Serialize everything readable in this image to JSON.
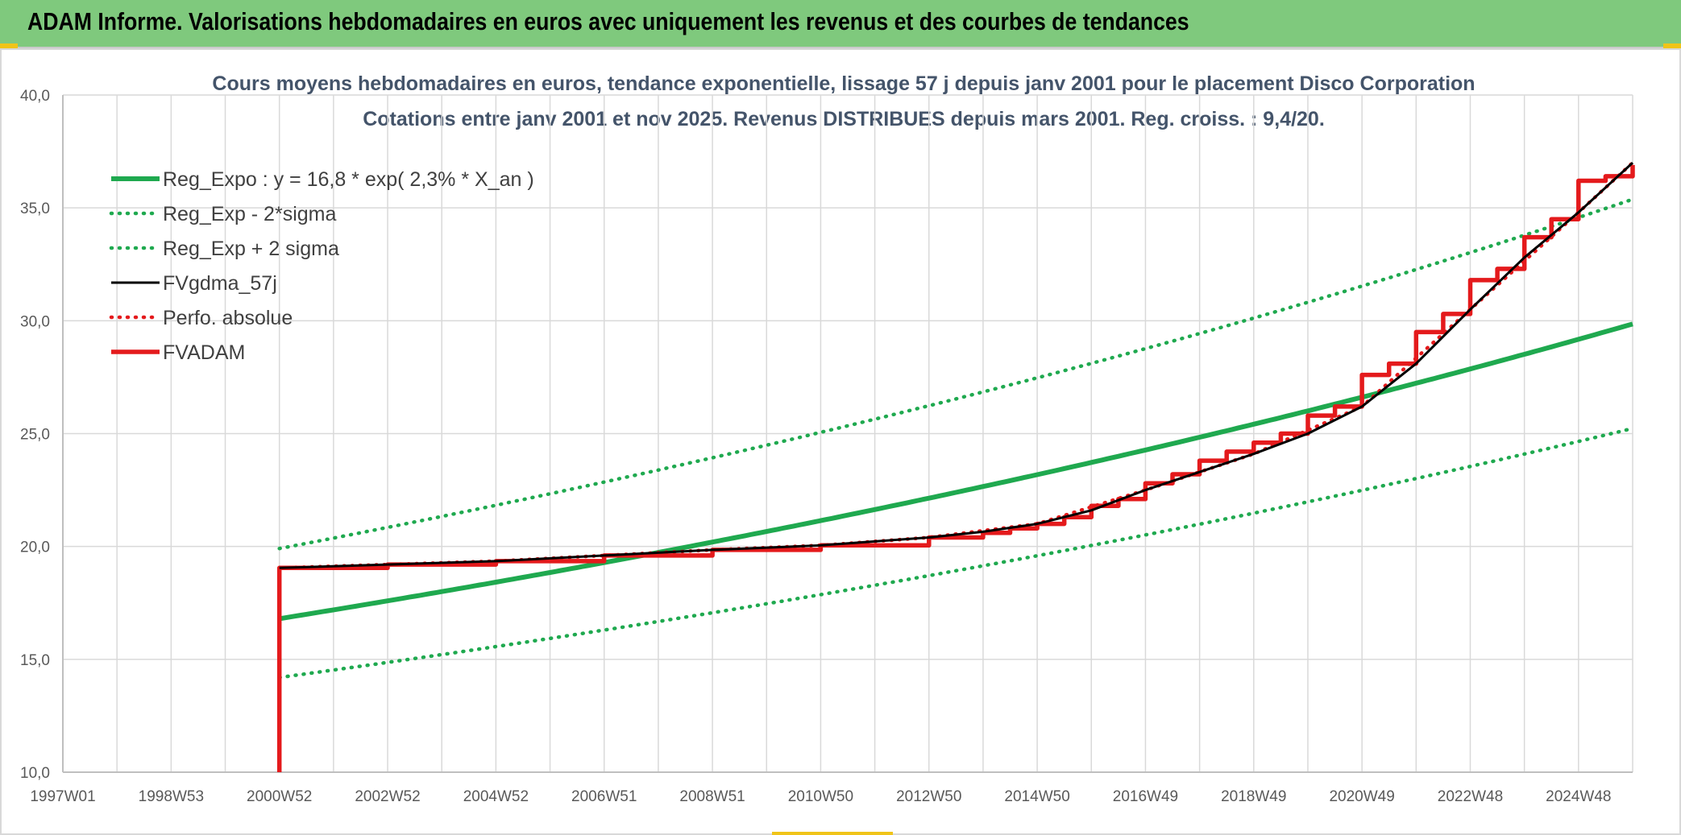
{
  "page": {
    "banner_title": "ADAM Informe. Valorisations hebdomadaires en euros avec uniquement les revenus et des courbes de tendances"
  },
  "chart_data": {
    "type": "line",
    "title": "Cours moyens hebdomadaires en euros, tendance exponentielle, lissage 57 j depuis janv 2001 pour le placement Disco Corporation",
    "subtitle": "Cotations entre janv 2001 et nov 2025. Revenus DISTRIBUES depuis mars 2001. Reg. croiss. : 9,4/20.",
    "xlabel": "",
    "ylabel": "",
    "x_tick_labels": [
      "1997W01",
      "1998W53",
      "2000W52",
      "2002W52",
      "2004W52",
      "2006W51",
      "2008W51",
      "2010W50",
      "2012W50",
      "2014W50",
      "2016W49",
      "2018W49",
      "2020W49",
      "2022W48",
      "2024W48"
    ],
    "x_ticks_years": [
      1997.0,
      1999.0,
      2001.0,
      2003.0,
      2005.0,
      2007.0,
      2009.0,
      2011.0,
      2013.0,
      2015.0,
      2017.0,
      2019.0,
      2021.0,
      2023.0,
      2025.0
    ],
    "xlim": [
      1997.0,
      2026.0
    ],
    "y_tick_labels": [
      "10,0",
      "15,0",
      "20,0",
      "25,0",
      "30,0",
      "35,0",
      "40,0"
    ],
    "y_ticks": [
      10,
      15,
      20,
      25,
      30,
      35,
      40
    ],
    "ylim": [
      10,
      40
    ],
    "grid": true,
    "legend_position": "top-left",
    "regression": {
      "a": 16.8,
      "rate": 0.023,
      "start_year": 2001.0,
      "end_year": 2026.0,
      "band_factor_low": 0.845,
      "band_factor_high": 1.185
    },
    "series": [
      {
        "name": "Reg_Expo : y = 16,8 * exp( 2,3% *  X_an )",
        "style": "solid-thick",
        "color": "#1fa94f",
        "x": [
          2001.0,
          2003.0,
          2005.0,
          2007.0,
          2009.0,
          2011.0,
          2013.0,
          2015.0,
          2017.0,
          2019.0,
          2021.0,
          2023.0,
          2025.0,
          2026.0
        ],
        "y": [
          16.8,
          17.6,
          18.4,
          19.3,
          20.2,
          21.2,
          22.2,
          23.2,
          24.3,
          25.5,
          26.7,
          28.0,
          29.3,
          30.1
        ]
      },
      {
        "name": "Reg_Exp - 2*sigma",
        "style": "dotted",
        "color": "#1fa94f",
        "x": [
          2001.0,
          2003.0,
          2005.0,
          2007.0,
          2009.0,
          2011.0,
          2013.0,
          2015.0,
          2017.0,
          2019.0,
          2021.0,
          2023.0,
          2025.0,
          2026.0
        ],
        "y": [
          14.2,
          14.9,
          15.6,
          16.3,
          17.1,
          17.9,
          18.7,
          19.6,
          20.5,
          21.5,
          22.6,
          23.6,
          24.8,
          25.4
        ]
      },
      {
        "name": "Reg_Exp + 2 sigma",
        "style": "dotted",
        "color": "#1fa94f",
        "x": [
          2001.0,
          2003.0,
          2005.0,
          2007.0,
          2009.0,
          2011.0,
          2013.0,
          2015.0,
          2017.0,
          2019.0,
          2021.0,
          2023.0,
          2025.0,
          2026.0
        ],
        "y": [
          19.9,
          20.8,
          21.8,
          22.8,
          23.9,
          25.1,
          26.3,
          27.5,
          28.8,
          30.2,
          31.6,
          33.2,
          34.7,
          35.7
        ]
      },
      {
        "name": "FVgdma_57j",
        "style": "solid",
        "color": "#000000",
        "x": [
          2001.0,
          2003.0,
          2005.0,
          2007.0,
          2009.0,
          2011.0,
          2013.0,
          2014.0,
          2015.0,
          2016.0,
          2017.0,
          2018.0,
          2019.0,
          2020.0,
          2021.0,
          2022.0,
          2023.0,
          2024.0,
          2025.0,
          2026.0
        ],
        "y": [
          19.05,
          19.2,
          19.35,
          19.6,
          19.85,
          20.05,
          20.4,
          20.65,
          21.0,
          21.6,
          22.5,
          23.3,
          24.1,
          25.0,
          26.2,
          28.1,
          30.5,
          32.8,
          34.8,
          37.0
        ]
      },
      {
        "name": "Perfo. absolue",
        "style": "dotted",
        "color": "#e41a1c",
        "x": [
          2001.0,
          2003.0,
          2005.0,
          2007.0,
          2009.0,
          2011.0,
          2013.0,
          2015.0,
          2017.0,
          2019.0,
          2021.0,
          2023.0,
          2025.0,
          2026.0
        ],
        "y": [
          19.05,
          19.2,
          19.35,
          19.6,
          19.85,
          20.05,
          20.4,
          21.0,
          22.5,
          24.1,
          26.2,
          30.5,
          34.8,
          37.0
        ]
      },
      {
        "name": "FVADAM",
        "style": "step-thick",
        "color": "#e41a1c",
        "x": [
          2001.0,
          2001.0,
          2003.0,
          2005.0,
          2007.0,
          2009.0,
          2011.0,
          2013.0,
          2014.0,
          2014.5,
          2015.0,
          2015.5,
          2016.0,
          2016.5,
          2017.0,
          2017.5,
          2018.0,
          2018.5,
          2019.0,
          2019.5,
          2020.0,
          2020.5,
          2021.0,
          2021.5,
          2022.0,
          2022.5,
          2023.0,
          2023.5,
          2024.0,
          2024.5,
          2025.0,
          2025.5,
          2026.0
        ],
        "y": [
          10.0,
          19.05,
          19.2,
          19.35,
          19.6,
          19.85,
          20.05,
          20.4,
          20.6,
          20.8,
          21.0,
          21.3,
          21.8,
          22.1,
          22.8,
          23.2,
          23.8,
          24.2,
          24.6,
          25.0,
          25.8,
          26.2,
          27.6,
          28.1,
          29.5,
          30.3,
          31.8,
          32.3,
          33.7,
          34.5,
          36.2,
          36.4,
          36.9
        ]
      }
    ]
  }
}
